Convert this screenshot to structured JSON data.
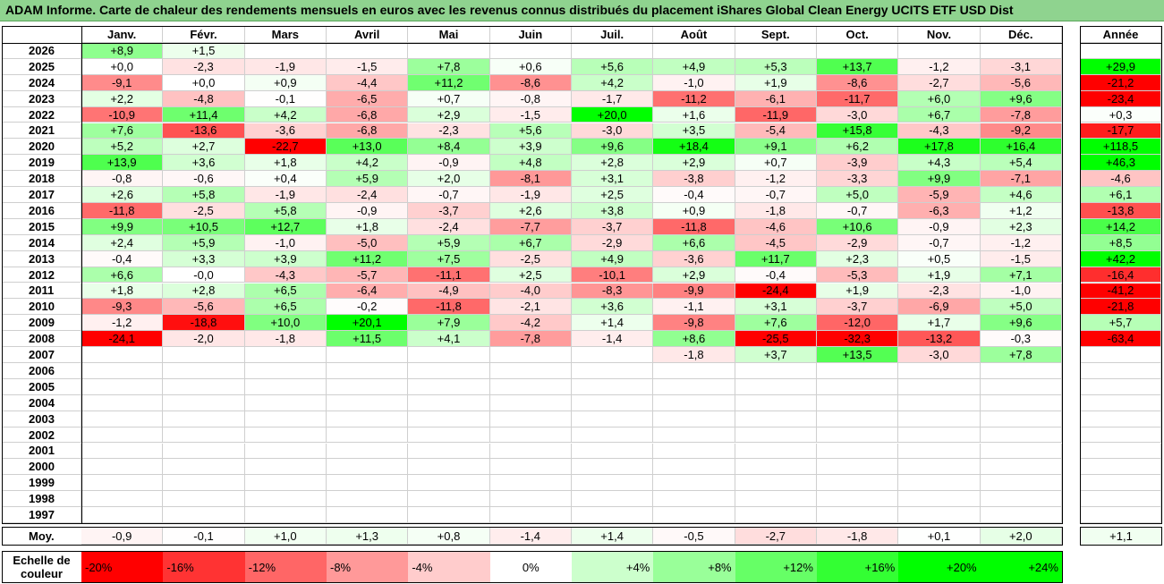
{
  "title": "ADAM Informe. Carte de chaleur des rendements mensuels en euros avec les revenus connus distribués du placement iShares Global Clean Energy UCITS ETF USD Dist",
  "year_header": "Année",
  "avg_label": "Moy.",
  "scale_label_line1": "Echelle de",
  "scale_label_line2": "couleur",
  "colors": {
    "negative_max": "#ff0000",
    "neutral": "#ffffff",
    "positive_max": "#00ff00"
  },
  "scale": [
    {
      "label": "-20%",
      "value": -20
    },
    {
      "label": "-16%",
      "value": -16
    },
    {
      "label": "-12%",
      "value": -12
    },
    {
      "label": "-8%",
      "value": -8
    },
    {
      "label": "-4%",
      "value": -4
    },
    {
      "label": "0%",
      "value": 0
    },
    {
      "label": "+4%",
      "value": 4
    },
    {
      "label": "+8%",
      "value": 8
    },
    {
      "label": "+12%",
      "value": 12
    },
    {
      "label": "+16%",
      "value": 16
    },
    {
      "label": "+20%",
      "value": 20
    },
    {
      "label": "+24%",
      "value": 24
    }
  ],
  "chart_data": {
    "type": "heatmap",
    "title": "ADAM Informe. Carte de chaleur des rendements mensuels en euros avec les revenus connus distribués du placement iShares Global Clean Energy UCITS ETF USD Dist",
    "months": [
      "Janv.",
      "Févr.",
      "Mars",
      "Avril",
      "Mai",
      "Juin",
      "Juil.",
      "Août",
      "Sept.",
      "Oct.",
      "Nov.",
      "Déc."
    ],
    "rows": [
      {
        "year": "2026",
        "values": [
          "+8,9",
          "+1,5",
          "",
          "",
          "",
          "",
          "",
          "",
          "",
          "",
          "",
          ""
        ],
        "annual": ""
      },
      {
        "year": "2025",
        "values": [
          "+0,0",
          "-2,3",
          "-1,9",
          "-1,5",
          "+7,8",
          "+0,6",
          "+5,6",
          "+4,9",
          "+5,3",
          "+13,7",
          "-1,2",
          "-3,1"
        ],
        "annual": "+29,9"
      },
      {
        "year": "2024",
        "values": [
          "-9,1",
          "+0,0",
          "+0,9",
          "-4,4",
          "+11,2",
          "-8,6",
          "+4,2",
          "-1,0",
          "+1,9",
          "-8,6",
          "-2,7",
          "-5,6"
        ],
        "annual": "-21,2"
      },
      {
        "year": "2023",
        "values": [
          "+2,2",
          "-4,8",
          "-0,1",
          "-6,5",
          "+0,7",
          "-0,8",
          "-1,7",
          "-11,2",
          "-6,1",
          "-11,7",
          "+6,0",
          "+9,6"
        ],
        "annual": "-23,4"
      },
      {
        "year": "2022",
        "values": [
          "-10,9",
          "+11,4",
          "+4,2",
          "-6,8",
          "+2,9",
          "-1,5",
          "+20,0",
          "+1,6",
          "-11,9",
          "-3,0",
          "+6,7",
          "-7,8"
        ],
        "annual": "+0,3"
      },
      {
        "year": "2021",
        "values": [
          "+7,6",
          "-13,6",
          "-3,6",
          "-6,8",
          "-2,3",
          "+5,6",
          "-3,0",
          "+3,5",
          "-5,4",
          "+15,8",
          "-4,3",
          "-9,2"
        ],
        "annual": "-17,7"
      },
      {
        "year": "2020",
        "values": [
          "+5,2",
          "+2,7",
          "-22,7",
          "+13,0",
          "+8,4",
          "+3,9",
          "+9,6",
          "+18,4",
          "+9,1",
          "+6,2",
          "+17,8",
          "+16,4"
        ],
        "annual": "+118,5"
      },
      {
        "year": "2019",
        "values": [
          "+13,9",
          "+3,6",
          "+1,8",
          "+4,2",
          "-0,9",
          "+4,8",
          "+2,8",
          "+2,9",
          "+0,7",
          "-3,9",
          "+4,3",
          "+5,4"
        ],
        "annual": "+46,3"
      },
      {
        "year": "2018",
        "values": [
          "-0,8",
          "-0,6",
          "+0,4",
          "+5,9",
          "+2,0",
          "-8,1",
          "+3,1",
          "-3,8",
          "-1,2",
          "-3,3",
          "+9,9",
          "-7,1"
        ],
        "annual": "-4,6"
      },
      {
        "year": "2017",
        "values": [
          "+2,6",
          "+5,8",
          "-1,9",
          "-2,4",
          "-0,7",
          "-1,9",
          "+2,5",
          "-0,4",
          "-0,7",
          "+5,0",
          "-5,9",
          "+4,6"
        ],
        "annual": "+6,1"
      },
      {
        "year": "2016",
        "values": [
          "-11,8",
          "-2,5",
          "+5,8",
          "-0,9",
          "-3,7",
          "+2,6",
          "+3,8",
          "+0,9",
          "-1,8",
          "-0,7",
          "-6,3",
          "+1,2"
        ],
        "annual": "-13,8"
      },
      {
        "year": "2015",
        "values": [
          "+9,9",
          "+10,5",
          "+12,7",
          "+1,8",
          "-2,4",
          "-7,7",
          "-3,7",
          "-11,8",
          "-4,6",
          "+10,6",
          "-0,9",
          "+2,3"
        ],
        "annual": "+14,2"
      },
      {
        "year": "2014",
        "values": [
          "+2,4",
          "+5,9",
          "-1,0",
          "-5,0",
          "+5,9",
          "+6,7",
          "-2,9",
          "+6,6",
          "-4,5",
          "-2,9",
          "-0,7",
          "-1,2"
        ],
        "annual": "+8,5"
      },
      {
        "year": "2013",
        "values": [
          "-0,4",
          "+3,3",
          "+3,9",
          "+11,2",
          "+7,5",
          "-2,5",
          "+4,9",
          "-3,6",
          "+11,7",
          "+2,3",
          "+0,5",
          "-1,5"
        ],
        "annual": "+42,2"
      },
      {
        "year": "2012",
        "values": [
          "+6,6",
          "-0,0",
          "-4,3",
          "-5,7",
          "-11,1",
          "+2,5",
          "-10,1",
          "+2,9",
          "-0,4",
          "-5,3",
          "+1,9",
          "+7,1"
        ],
        "annual": "-16,4"
      },
      {
        "year": "2011",
        "values": [
          "+1,8",
          "+2,8",
          "+6,5",
          "-6,4",
          "-4,9",
          "-4,0",
          "-8,3",
          "-9,9",
          "-24,4",
          "+1,9",
          "-2,3",
          "-1,0"
        ],
        "annual": "-41,2"
      },
      {
        "year": "2010",
        "values": [
          "-9,3",
          "-5,6",
          "+6,5",
          "-0,2",
          "-11,8",
          "-2,1",
          "+3,6",
          "-1,1",
          "+3,1",
          "-3,7",
          "-6,9",
          "+5,0"
        ],
        "annual": "-21,8"
      },
      {
        "year": "2009",
        "values": [
          "-1,2",
          "-18,8",
          "+10,0",
          "+20,1",
          "+7,9",
          "-4,2",
          "+1,4",
          "-9,8",
          "+7,6",
          "-12,0",
          "+1,7",
          "+9,6"
        ],
        "annual": "+5,7"
      },
      {
        "year": "2008",
        "values": [
          "-24,1",
          "-2,0",
          "-1,8",
          "+11,5",
          "+4,1",
          "-7,8",
          "-1,4",
          "+8,6",
          "-25,5",
          "-32,3",
          "-13,2",
          "-0,3"
        ],
        "annual": "-63,4"
      },
      {
        "year": "2007",
        "values": [
          "",
          "",
          "",
          "",
          "",
          "",
          "",
          "-1,8",
          "+3,7",
          "+13,5",
          "-3,0",
          "+7,8"
        ],
        "annual": ""
      },
      {
        "year": "2006",
        "values": [
          "",
          "",
          "",
          "",
          "",
          "",
          "",
          "",
          "",
          "",
          "",
          ""
        ],
        "annual": ""
      },
      {
        "year": "2005",
        "values": [
          "",
          "",
          "",
          "",
          "",
          "",
          "",
          "",
          "",
          "",
          "",
          ""
        ],
        "annual": ""
      },
      {
        "year": "2004",
        "values": [
          "",
          "",
          "",
          "",
          "",
          "",
          "",
          "",
          "",
          "",
          "",
          ""
        ],
        "annual": ""
      },
      {
        "year": "2003",
        "values": [
          "",
          "",
          "",
          "",
          "",
          "",
          "",
          "",
          "",
          "",
          "",
          ""
        ],
        "annual": ""
      },
      {
        "year": "2002",
        "values": [
          "",
          "",
          "",
          "",
          "",
          "",
          "",
          "",
          "",
          "",
          "",
          ""
        ],
        "annual": ""
      },
      {
        "year": "2001",
        "values": [
          "",
          "",
          "",
          "",
          "",
          "",
          "",
          "",
          "",
          "",
          "",
          ""
        ],
        "annual": ""
      },
      {
        "year": "2000",
        "values": [
          "",
          "",
          "",
          "",
          "",
          "",
          "",
          "",
          "",
          "",
          "",
          ""
        ],
        "annual": ""
      },
      {
        "year": "1999",
        "values": [
          "",
          "",
          "",
          "",
          "",
          "",
          "",
          "",
          "",
          "",
          "",
          ""
        ],
        "annual": ""
      },
      {
        "year": "1998",
        "values": [
          "",
          "",
          "",
          "",
          "",
          "",
          "",
          "",
          "",
          "",
          "",
          ""
        ],
        "annual": ""
      },
      {
        "year": "1997",
        "values": [
          "",
          "",
          "",
          "",
          "",
          "",
          "",
          "",
          "",
          "",
          "",
          ""
        ],
        "annual": ""
      }
    ],
    "averages": [
      "-0,9",
      "-0,1",
      "+1,0",
      "+1,3",
      "+0,8",
      "-1,4",
      "+1,4",
      "-0,5",
      "-2,7",
      "-1,8",
      "+0,1",
      "+2,0"
    ],
    "average_annual": "+1,1"
  }
}
